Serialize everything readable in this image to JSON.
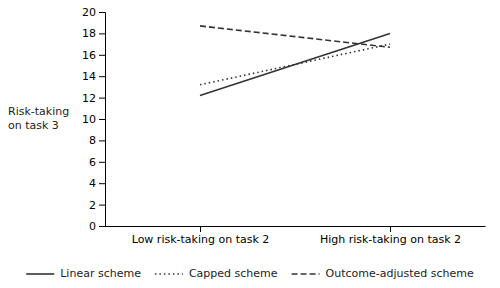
{
  "chart_data": {
    "type": "line",
    "y_label": "Risk-taking\non task 3",
    "categories": [
      "Low risk-taking on task 2",
      "High risk-taking on task 2"
    ],
    "series": [
      {
        "name": "Linear scheme",
        "color": "#333333",
        "line_style": "solid",
        "values": [
          12.2,
          18.0
        ]
      },
      {
        "name": "Capped scheme",
        "color": "#333333",
        "line_style": "dotted",
        "values": [
          13.2,
          17.0
        ]
      },
      {
        "name": "Outcome-adjusted scheme",
        "color": "#333333",
        "line_style": "dashed",
        "values": [
          18.7,
          16.7
        ]
      }
    ],
    "ylim": [
      0,
      20
    ],
    "yticks": [
      0,
      2,
      4,
      6,
      8,
      10,
      12,
      14,
      16,
      18,
      20
    ],
    "grid": false,
    "legend": "bottom"
  }
}
